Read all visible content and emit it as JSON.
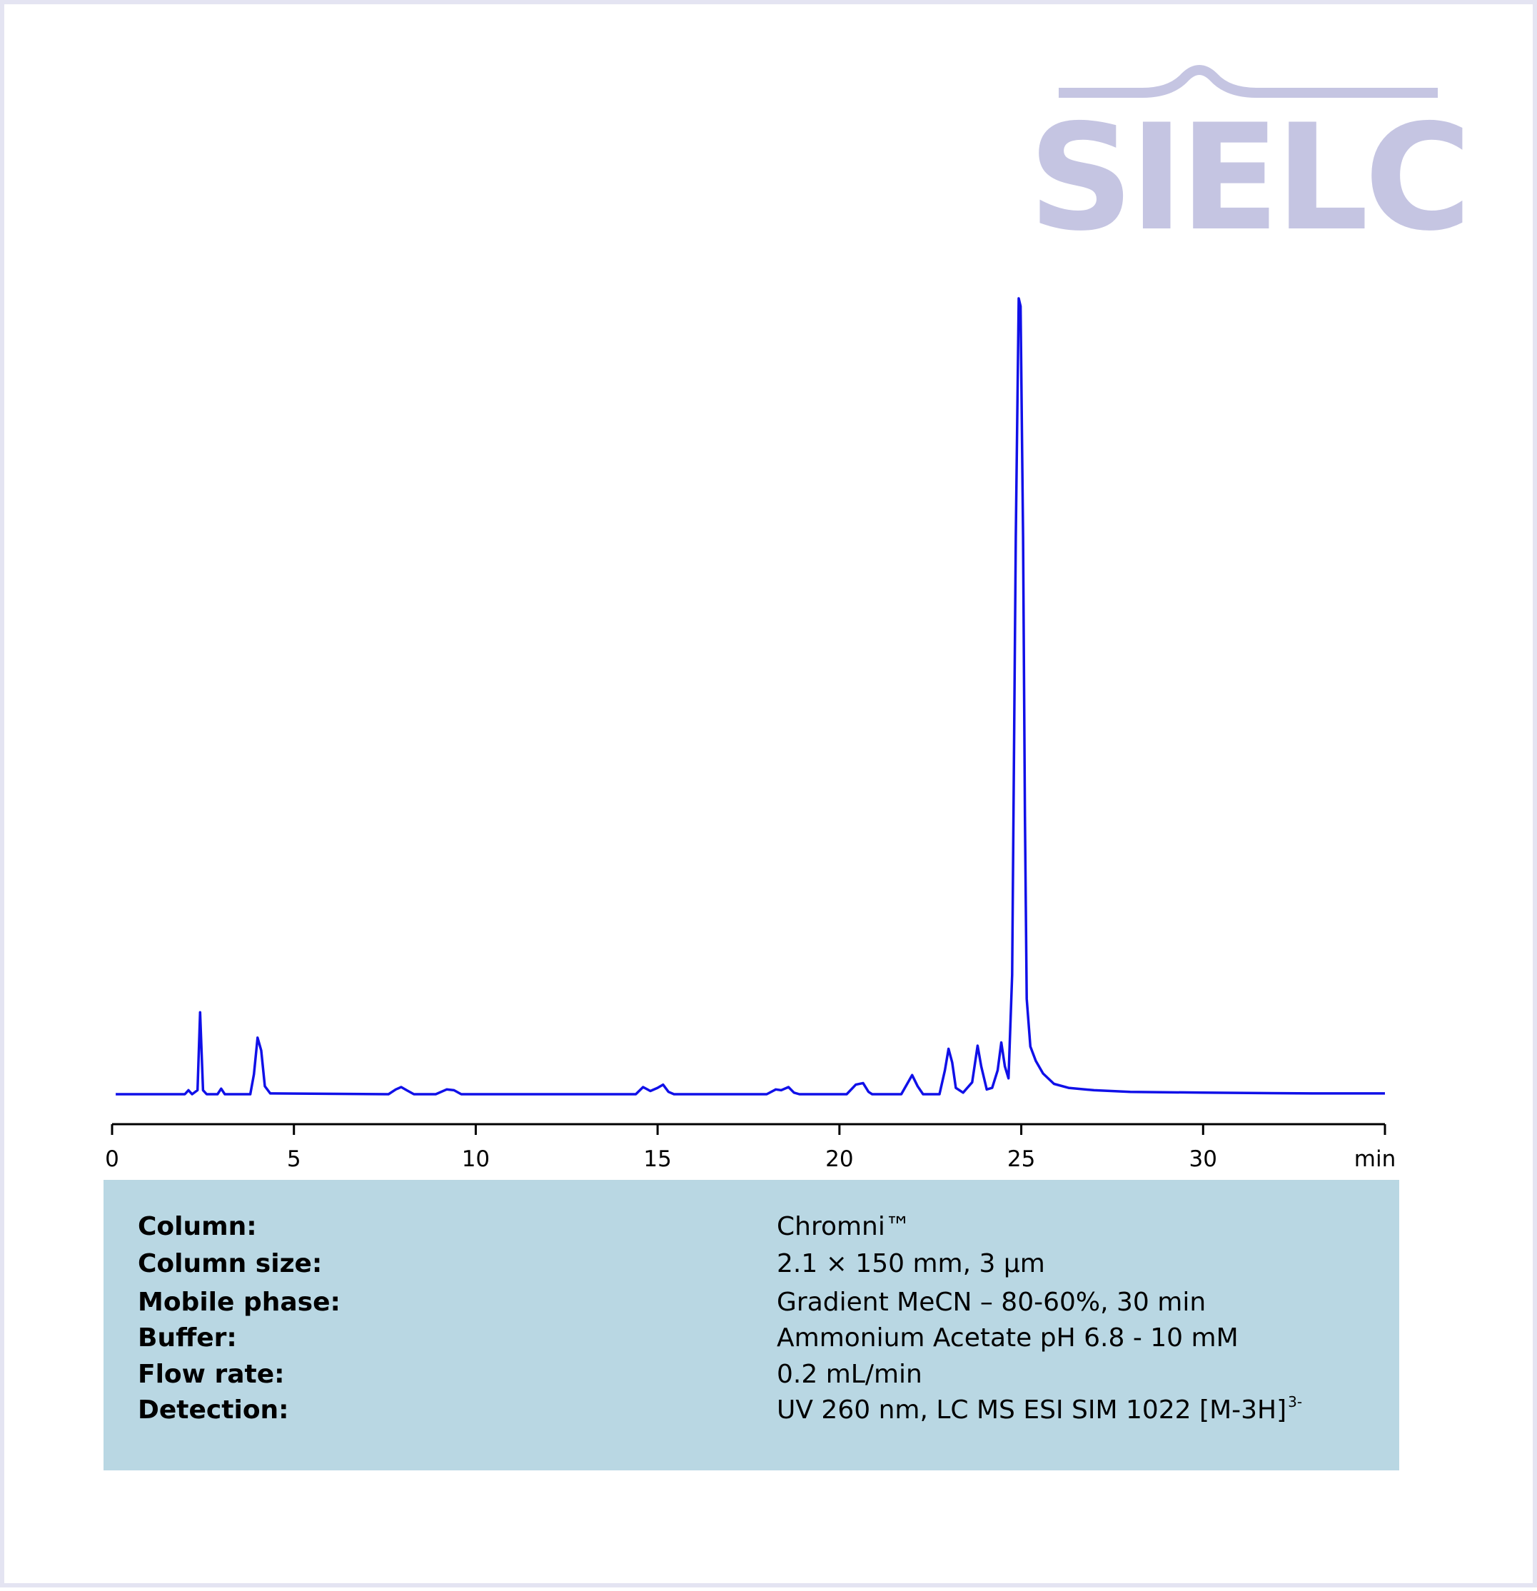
{
  "logo": "SIELC",
  "chart_data": {
    "type": "line",
    "x_label": "min",
    "color": "#1010e8",
    "xlim": [
      0,
      35
    ],
    "xticks": [
      0,
      5,
      10,
      15,
      20,
      25,
      30
    ],
    "ylim": [
      0,
      100
    ],
    "x": [
      0.1,
      2.0,
      2.1,
      2.2,
      2.35,
      2.42,
      2.5,
      2.6,
      2.9,
      3.0,
      3.1,
      3.8,
      3.9,
      4.0,
      4.1,
      4.2,
      4.35,
      7.6,
      7.8,
      7.95,
      8.1,
      8.3,
      8.9,
      9.2,
      9.4,
      9.6,
      14.4,
      14.6,
      14.8,
      15.0,
      15.15,
      15.3,
      15.45,
      18.0,
      18.25,
      18.4,
      18.6,
      18.75,
      18.9,
      20.2,
      20.45,
      20.65,
      20.8,
      20.9,
      21.7,
      21.9,
      22.0,
      22.15,
      22.3,
      22.75,
      22.9,
      23.0,
      23.1,
      23.2,
      23.4,
      23.65,
      23.8,
      23.9,
      24.05,
      24.2,
      24.35,
      24.45,
      24.55,
      24.65,
      24.75,
      24.85,
      24.93,
      24.98,
      25.05,
      25.1,
      25.15,
      25.25,
      25.4,
      25.6,
      25.9,
      26.3,
      27,
      28,
      30,
      33,
      35
    ],
    "values": [
      0,
      0,
      0.5,
      0,
      0.5,
      10.3,
      0.5,
      0,
      0,
      0.7,
      0,
      0,
      2.5,
      7.1,
      5.5,
      1.0,
      0.1,
      0,
      0.6,
      0.9,
      0.5,
      0,
      0,
      0.6,
      0.5,
      0,
      0,
      0.9,
      0.4,
      0.8,
      1.2,
      0.3,
      0,
      0,
      0.6,
      0.5,
      0.9,
      0.2,
      0,
      0,
      1.2,
      1.4,
      0.3,
      0,
      0,
      1.6,
      2.4,
      1.0,
      0,
      0,
      3.0,
      5.7,
      4.0,
      0.8,
      0.2,
      1.5,
      6.1,
      3.5,
      0.6,
      0.8,
      3.0,
      6.5,
      3.5,
      2.0,
      15,
      70,
      100,
      99,
      70,
      35,
      12,
      6,
      4.2,
      2.6,
      1.3,
      0.8,
      0.5,
      0.3,
      0.2,
      0.1,
      0.1
    ]
  },
  "conditions": {
    "rows": [
      [
        "Column:",
        "Chromni™"
      ],
      [
        "Column size:",
        "2.1  × 150 mm, 3 µm"
      ],
      [
        "Mobile phase:",
        "Gradient MeCN – 80-60%, 30 min"
      ],
      [
        "Buffer:",
        "Ammonium Acetate pH 6.8 - 10 mM"
      ],
      [
        "Flow rate:",
        "0.2 mL/min"
      ],
      [
        "Detection:",
        "UV 260 nm, LC MS ESI SIM 1022 [M-3H]"
      ]
    ],
    "superscript": "3-"
  }
}
